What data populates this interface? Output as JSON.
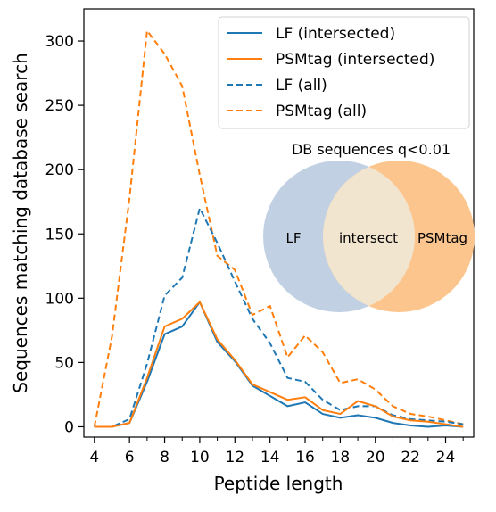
{
  "chart_data": {
    "type": "line",
    "title": "",
    "xlabel": "Peptide length",
    "ylabel": "Sequences matching database search",
    "xlim": [
      3.4,
      25.6
    ],
    "ylim": [
      -8,
      325
    ],
    "x_ticks": [
      4,
      6,
      8,
      10,
      12,
      14,
      16,
      18,
      20,
      22,
      24
    ],
    "x_minor_ticks": [
      5,
      7,
      9,
      11,
      13,
      15,
      17,
      19,
      21,
      23,
      25
    ],
    "y_ticks": [
      0,
      50,
      100,
      150,
      200,
      250,
      300
    ],
    "grid": false,
    "legend_position": "top-right",
    "x": [
      4,
      5,
      6,
      7,
      8,
      9,
      10,
      11,
      12,
      13,
      14,
      15,
      16,
      17,
      18,
      19,
      20,
      21,
      22,
      23,
      24,
      25
    ],
    "series": [
      {
        "name": "LF (intersected)",
        "color": "#1f77b4",
        "linestyle": "solid",
        "values": [
          0,
          0,
          3,
          35,
          72,
          78,
          97,
          66,
          51,
          32,
          24,
          16,
          19,
          10,
          7,
          9,
          7,
          3,
          1,
          0,
          1,
          0
        ]
      },
      {
        "name": "PSMtag (intersected)",
        "color": "#ff7f0e",
        "linestyle": "solid",
        "values": [
          0,
          0,
          3,
          38,
          78,
          84,
          97,
          68,
          52,
          33,
          27,
          21,
          23,
          13,
          10,
          20,
          16,
          8,
          5,
          4,
          2,
          0
        ]
      },
      {
        "name": "LF (all)",
        "color": "#1f77b4",
        "linestyle": "dashed",
        "values": [
          0,
          0,
          6,
          49,
          102,
          116,
          170,
          143,
          113,
          84,
          65,
          38,
          35,
          21,
          13,
          16,
          16,
          9,
          6,
          5,
          4,
          2
        ]
      },
      {
        "name": "PSMtag (all)",
        "color": "#ff7f0e",
        "linestyle": "dashed",
        "values": [
          0,
          70,
          178,
          308,
          290,
          265,
          196,
          133,
          122,
          87,
          94,
          54,
          71,
          58,
          34,
          37,
          29,
          16,
          10,
          8,
          5,
          2
        ]
      }
    ],
    "inset_venn": {
      "title": "DB sequences q<0.01",
      "left_label": "LF",
      "center_label": "intersect",
      "right_label": "PSMtag",
      "left_color": "#c1d1e3",
      "right_color": "#fcc58d",
      "overlap_color": "#f2e5cf"
    }
  }
}
